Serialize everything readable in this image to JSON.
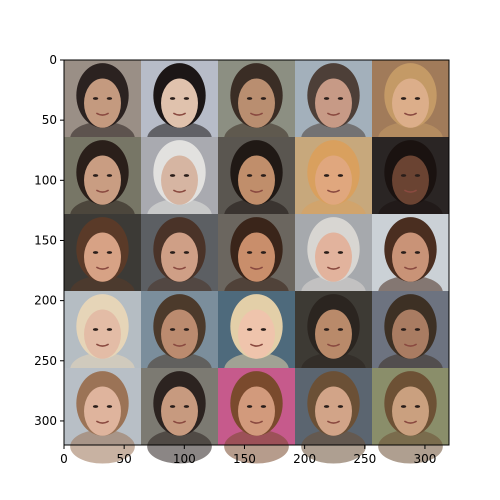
{
  "chart_data": {
    "type": "image",
    "title": "",
    "xlabel": "",
    "ylabel": "",
    "xlim": [
      0,
      320
    ],
    "ylim": [
      320,
      0
    ],
    "xticks": [
      0,
      50,
      100,
      150,
      200,
      250,
      300
    ],
    "yticks": [
      0,
      50,
      100,
      150,
      200,
      250,
      300
    ],
    "grid": {
      "rows": 5,
      "cols": 5,
      "cell_size": 64,
      "content": "face-thumbnails",
      "tiles": [
        {
          "row": 0,
          "col": 0,
          "bg": "#9a8f86",
          "face": "#c49a7f",
          "hair": "#2b2220"
        },
        {
          "row": 0,
          "col": 1,
          "bg": "#b7bcc8",
          "face": "#e0c2ad",
          "hair": "#1c1616"
        },
        {
          "row": 0,
          "col": 2,
          "bg": "#8c8f82",
          "face": "#b98e70",
          "hair": "#3a2d25"
        },
        {
          "row": 0,
          "col": 3,
          "bg": "#a3b0bb",
          "face": "#c79a86",
          "hair": "#4d3f38"
        },
        {
          "row": 0,
          "col": 4,
          "bg": "#a17b5a",
          "face": "#dcae8a",
          "hair": "#c49a66"
        },
        {
          "row": 1,
          "col": 0,
          "bg": "#777666",
          "face": "#c99d82",
          "hair": "#2a1f1a"
        },
        {
          "row": 1,
          "col": 1,
          "bg": "#a9aab0",
          "face": "#d6b5a2",
          "hair": "#e2e1df"
        },
        {
          "row": 1,
          "col": 2,
          "bg": "#5a5650",
          "face": "#c08e6b",
          "hair": "#201915"
        },
        {
          "row": 1,
          "col": 3,
          "bg": "#c7a87c",
          "face": "#e0a77e",
          "hair": "#d9a05e"
        },
        {
          "row": 1,
          "col": 4,
          "bg": "#2a2524",
          "face": "#6a4332",
          "hair": "#1a1210"
        },
        {
          "row": 2,
          "col": 0,
          "bg": "#3c3a36",
          "face": "#d7a285",
          "hair": "#5a3a28"
        },
        {
          "row": 2,
          "col": 1,
          "bg": "#5c5f63",
          "face": "#cf9f86",
          "hair": "#4a3328"
        },
        {
          "row": 2,
          "col": 2,
          "bg": "#6b665f",
          "face": "#c98e6b",
          "hair": "#3a251a"
        },
        {
          "row": 2,
          "col": 3,
          "bg": "#a6a9ad",
          "face": "#e2b39d",
          "hair": "#d8d6d2"
        },
        {
          "row": 2,
          "col": 4,
          "bg": "#cbd1d6",
          "face": "#c99377",
          "hair": "#4a2e20"
        },
        {
          "row": 3,
          "col": 0,
          "bg": "#b5bdc3",
          "face": "#e3bca6",
          "hair": "#e6d5b8"
        },
        {
          "row": 3,
          "col": 1,
          "bg": "#7b8e9c",
          "face": "#bb8b6f",
          "hair": "#4c3a2b"
        },
        {
          "row": 3,
          "col": 2,
          "bg": "#4e6a7c",
          "face": "#efc4ac",
          "hair": "#e3cfa8"
        },
        {
          "row": 3,
          "col": 3,
          "bg": "#3d3a34",
          "face": "#b98a6a",
          "hair": "#2b2520"
        },
        {
          "row": 3,
          "col": 4,
          "bg": "#6d7380",
          "face": "#a97c62",
          "hair": "#3d3024"
        },
        {
          "row": 4,
          "col": 0,
          "bg": "#b8bfc6",
          "face": "#dfb49d",
          "hair": "#9b7356"
        },
        {
          "row": 4,
          "col": 1,
          "bg": "#7c7a72",
          "face": "#c79a7f",
          "hair": "#2c2320"
        },
        {
          "row": 4,
          "col": 2,
          "bg": "#c65a8c",
          "face": "#d29a7c",
          "hair": "#7a4a2d"
        },
        {
          "row": 4,
          "col": 3,
          "bg": "#5b6570",
          "face": "#d2a488",
          "hair": "#6b5036"
        },
        {
          "row": 4,
          "col": 4,
          "bg": "#8a8e6a",
          "face": "#caa07f",
          "hair": "#6d5135"
        }
      ]
    }
  }
}
